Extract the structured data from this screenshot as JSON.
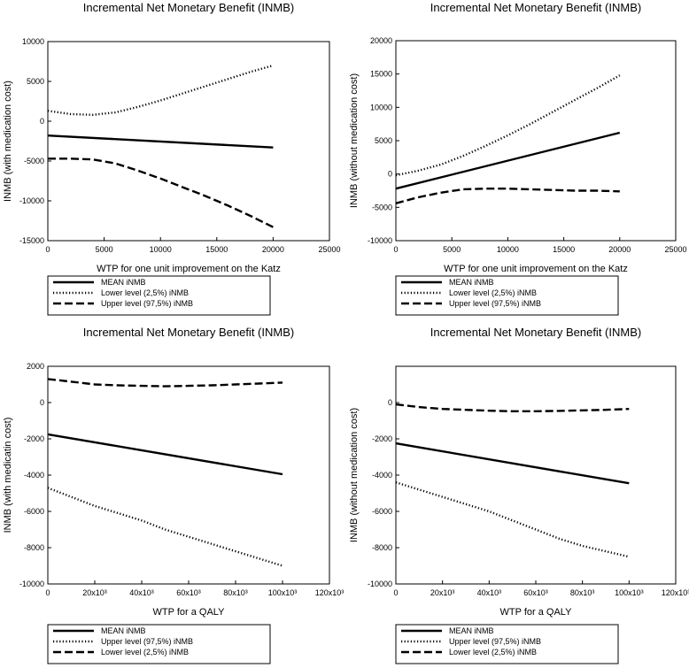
{
  "chart_data": [
    {
      "type": "line",
      "title": "Incremental Net Monetary Benefit (INMB)",
      "xlabel": "WTP for one unit improvement on the Katz",
      "ylabel": "INMB (with medication cost)",
      "xlim": [
        0,
        25000
      ],
      "ylim": [
        -15000,
        10000
      ],
      "xticks": [
        0,
        5000,
        10000,
        15000,
        20000,
        25000
      ],
      "xtick_labels": [
        "0",
        "5000",
        "10000",
        "15000",
        "20000",
        "25000"
      ],
      "yticks": [
        -15000,
        -10000,
        -5000,
        0,
        5000,
        10000
      ],
      "ytick_labels": [
        "-15000",
        "-10000",
        "-5000",
        "0",
        "5000",
        "10000"
      ],
      "series": [
        {
          "name": "MEAN iNMB",
          "style": "solid",
          "x": [
            0,
            20000
          ],
          "y": [
            -1800,
            -3300
          ]
        },
        {
          "name": "Lower level (2,5%) iNMB",
          "style": "dotted",
          "x": [
            0,
            2000,
            4000,
            6000,
            8000,
            10000,
            12000,
            14000,
            16000,
            18000,
            20000
          ],
          "y": [
            1300,
            900,
            800,
            1100,
            1800,
            2600,
            3500,
            4400,
            5300,
            6200,
            7000
          ]
        },
        {
          "name": "Upper level (97,5%) iNMB",
          "style": "dashed",
          "x": [
            0,
            2000,
            4000,
            6000,
            8000,
            10000,
            12000,
            14000,
            16000,
            18000,
            20000
          ],
          "y": [
            -4700,
            -4700,
            -4800,
            -5300,
            -6200,
            -7200,
            -8300,
            -9400,
            -10600,
            -11900,
            -13300
          ]
        }
      ]
    },
    {
      "type": "line",
      "title": "Incremental Net Monetary Benefit (INMB)",
      "xlabel": "WTP for one unit improvement on the Katz",
      "ylabel": "INMB (without medication cost)",
      "xlim": [
        0,
        25000
      ],
      "ylim": [
        -10000,
        20000
      ],
      "xticks": [
        0,
        5000,
        10000,
        15000,
        20000,
        25000
      ],
      "xtick_labels": [
        "0",
        "5000",
        "10000",
        "15000",
        "20000",
        "25000"
      ],
      "yticks": [
        -10000,
        -5000,
        0,
        5000,
        10000,
        15000,
        20000
      ],
      "ytick_labels": [
        "-10000",
        "-5000",
        "0",
        "5000",
        "10000",
        "15000",
        "20000"
      ],
      "series": [
        {
          "name": "MEAN iNMB",
          "style": "solid",
          "x": [
            0,
            20000
          ],
          "y": [
            -2200,
            6200
          ]
        },
        {
          "name": "Lower level (2,5%) iNMB",
          "style": "dotted",
          "x": [
            0,
            2000,
            4000,
            6000,
            8000,
            10000,
            12000,
            14000,
            16000,
            18000,
            20000
          ],
          "y": [
            -200,
            500,
            1400,
            2700,
            4200,
            5800,
            7500,
            9300,
            11100,
            12900,
            14800
          ]
        },
        {
          "name": "Upper level (97,5%) iNMB",
          "style": "dashed",
          "x": [
            0,
            2000,
            4000,
            6000,
            8000,
            10000,
            12000,
            14000,
            16000,
            18000,
            20000
          ],
          "y": [
            -4400,
            -3500,
            -2800,
            -2300,
            -2200,
            -2200,
            -2300,
            -2400,
            -2500,
            -2500,
            -2600
          ]
        }
      ]
    },
    {
      "type": "line",
      "title": "Incremental Net Monetary Benefit (INMB)",
      "xlabel": "WTP for a QALY",
      "ylabel": "INMB (with medicatin cost)",
      "xlim": [
        0,
        120000
      ],
      "ylim": [
        -10000,
        2000
      ],
      "xticks": [
        0,
        20000,
        40000,
        60000,
        80000,
        100000,
        120000
      ],
      "xtick_labels": [
        "0",
        "20x10³",
        "40x10³",
        "60x10³",
        "80x10³",
        "100x10³",
        "120x10³"
      ],
      "yticks": [
        -10000,
        -8000,
        -6000,
        -4000,
        -2000,
        0,
        2000
      ],
      "ytick_labels": [
        "-10000",
        "-8000",
        "-6000",
        "-4000",
        "-2000",
        "0",
        "2000"
      ],
      "series": [
        {
          "name": "MEAN iNMB",
          "style": "solid",
          "x": [
            0,
            100000
          ],
          "y": [
            -1750,
            -3950
          ]
        },
        {
          "name": "Upper level (97,5%) iNMB",
          "style": "dotted",
          "x": [
            0,
            10000,
            20000,
            30000,
            40000,
            50000,
            60000,
            70000,
            80000,
            90000,
            100000
          ],
          "y": [
            -4700,
            -5200,
            -5700,
            -6100,
            -6500,
            -7000,
            -7400,
            -7800,
            -8200,
            -8600,
            -9000
          ]
        },
        {
          "name": "Lower level (2,5%) iNMB",
          "style": "dashed",
          "x": [
            0,
            10000,
            20000,
            30000,
            40000,
            50000,
            60000,
            70000,
            80000,
            90000,
            100000
          ],
          "y": [
            1300,
            1150,
            1000,
            950,
            920,
            900,
            920,
            950,
            1000,
            1050,
            1100
          ]
        }
      ]
    },
    {
      "type": "line",
      "title": "Incremental Net Monetary Benefit (INMB)",
      "xlabel": "WTP for a QALY",
      "ylabel": "INMB (without medication cost)",
      "xlim": [
        0,
        120000
      ],
      "ylim": [
        -10000,
        2000
      ],
      "xticks": [
        0,
        20000,
        40000,
        60000,
        80000,
        100000,
        120000
      ],
      "xtick_labels": [
        "0",
        "20x10³",
        "40x10³",
        "60x10³",
        "80x10³",
        "100x10³",
        "120x10³"
      ],
      "yticks": [
        -10000,
        -8000,
        -6000,
        -4000,
        -2000,
        0
      ],
      "ytick_labels": [
        "-10000",
        "-8000",
        "-6000",
        "-4000",
        "-2000",
        "0"
      ],
      "series": [
        {
          "name": "MEAN iNMB",
          "style": "solid",
          "x": [
            0,
            100000
          ],
          "y": [
            -2250,
            -4450
          ]
        },
        {
          "name": "Upper level (97,5%) iNMB",
          "style": "dotted",
          "x": [
            0,
            10000,
            20000,
            30000,
            40000,
            50000,
            60000,
            70000,
            80000,
            90000,
            100000
          ],
          "y": [
            -4400,
            -4800,
            -5200,
            -5600,
            -6000,
            -6500,
            -7000,
            -7500,
            -7900,
            -8200,
            -8500
          ]
        },
        {
          "name": "Lower level (2,5%) iNMB",
          "style": "dashed",
          "x": [
            0,
            10000,
            20000,
            30000,
            40000,
            50000,
            60000,
            70000,
            80000,
            90000,
            100000
          ],
          "y": [
            -100,
            -250,
            -350,
            -400,
            -450,
            -480,
            -480,
            -460,
            -430,
            -400,
            -350
          ]
        }
      ]
    }
  ]
}
